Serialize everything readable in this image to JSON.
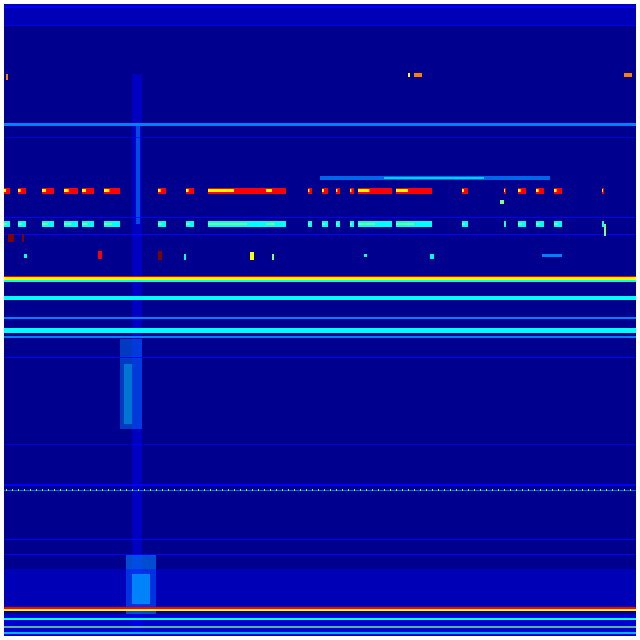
{
  "figure": {
    "kind": "spectrogram-heatmap",
    "colormap": "jet",
    "colors": {
      "background": "#00008f",
      "low": "#0000ff",
      "mid_low": "#0080ff",
      "mid": "#00ffff",
      "mid_high": "#80ff80",
      "high": "#ffff00",
      "very_high": "#ff8000",
      "max": "#ff0000",
      "peak": "#800000"
    }
  }
}
